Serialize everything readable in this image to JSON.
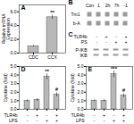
{
  "chart_data": [
    {
      "type": "bar",
      "title": "A",
      "categories": [
        "CDC",
        "CCX"
      ],
      "values": [
        1.0,
        5.2
      ],
      "errors": [
        0.1,
        0.3
      ],
      "color": "#b8b8b8",
      "ylabel": "Relative mRNA\nExpression",
      "ylim": [
        0,
        7
      ],
      "yticks": [
        0,
        2,
        4,
        6
      ],
      "annotations": [
        {
          "text": "**",
          "x": 1,
          "y": 5.6
        }
      ]
    },
    {
      "type": "blot",
      "title": "B",
      "categories": [
        "Con",
        "1",
        "2h",
        "7h",
        "-1"
      ],
      "rows": [
        "Tm1",
        "b-A"
      ],
      "color": "#999999"
    },
    {
      "type": "blot",
      "title": "C",
      "label_rows": [
        {
          "name": "TLR4b",
          "labels": [
            "-",
            "+",
            "-",
            "+"
          ]
        },
        {
          "name": "PS",
          "labels": [
            "-",
            "-",
            "+",
            "+"
          ]
        }
      ],
      "rows": [
        "P-IKB",
        "IKB"
      ],
      "color": "#999999"
    },
    {
      "type": "bar",
      "title": "D",
      "categories": [
        null,
        null,
        null,
        null
      ],
      "values": [
        1.0,
        1.1,
        3.8,
        1.7
      ],
      "errors": [
        0.12,
        0.15,
        0.35,
        0.25
      ],
      "color": "#b8b8b8",
      "ylabel": "Cytokine (fold)",
      "ylim": [
        0,
        5
      ],
      "yticks": [
        0,
        1,
        2,
        3,
        4,
        5
      ],
      "annotations": [
        {
          "text": "**",
          "x": 2,
          "y": 4.2
        },
        {
          "text": "#",
          "x": 3,
          "y": 2.1
        }
      ],
      "label_rows": [
        {
          "name": "TLR4b",
          "labels": [
            "-",
            "+",
            "-",
            "+"
          ]
        },
        {
          "name": "LPS",
          "labels": [
            "-",
            "-",
            "+",
            "+"
          ]
        }
      ]
    },
    {
      "type": "bar",
      "title": "E",
      "categories": [
        null,
        null,
        null,
        null
      ],
      "values": [
        1.0,
        1.0,
        4.1,
        1.6
      ],
      "errors": [
        0.12,
        0.15,
        0.38,
        0.22
      ],
      "color": "#b8b8b8",
      "ylabel": "Cytokine (fold)",
      "ylim": [
        0,
        5
      ],
      "yticks": [
        0,
        1,
        2,
        3,
        4,
        5
      ],
      "annotations": [
        {
          "text": "***",
          "x": 2,
          "y": 4.5
        },
        {
          "text": "#",
          "x": 3,
          "y": 2.0
        }
      ],
      "label_rows": [
        {
          "name": "TLR4b",
          "labels": [
            "-",
            "+",
            "-",
            "+"
          ]
        },
        {
          "name": "LPS",
          "labels": [
            "-",
            "-",
            "+",
            "+"
          ]
        }
      ]
    }
  ]
}
